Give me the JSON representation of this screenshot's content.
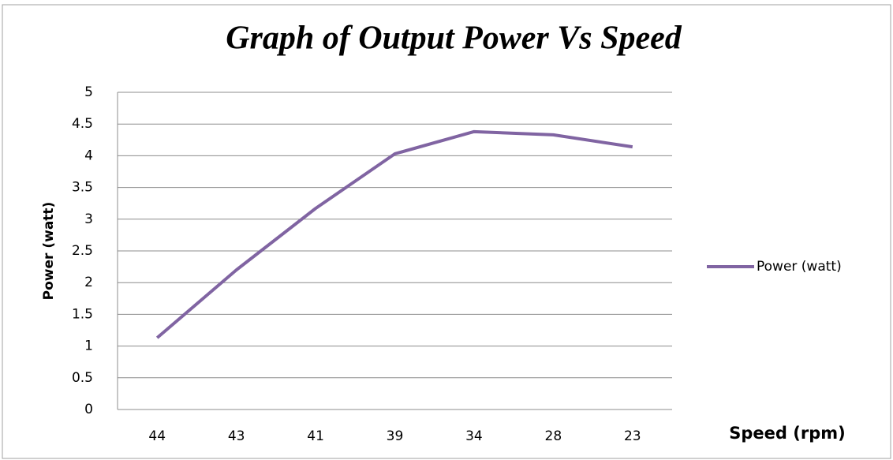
{
  "chart_data": {
    "type": "line",
    "title": "Graph of Output Power Vs Speed",
    "x_label": "Speed (rpm)",
    "y_label": "Power (watt)",
    "categories": [
      "44",
      "43",
      "41",
      "39",
      "34",
      "28",
      "23"
    ],
    "series": [
      {
        "name": "Power (watt)",
        "color": "#8064a2",
        "values": [
          1.13,
          2.2,
          3.17,
          4.03,
          4.38,
          4.33,
          4.14
        ]
      }
    ],
    "ylim": [
      0,
      5
    ],
    "yticks": [
      0,
      0.5,
      1,
      1.5,
      2,
      2.5,
      3,
      3.5,
      4,
      4.5,
      5
    ],
    "grid": true,
    "legend": "right"
  }
}
